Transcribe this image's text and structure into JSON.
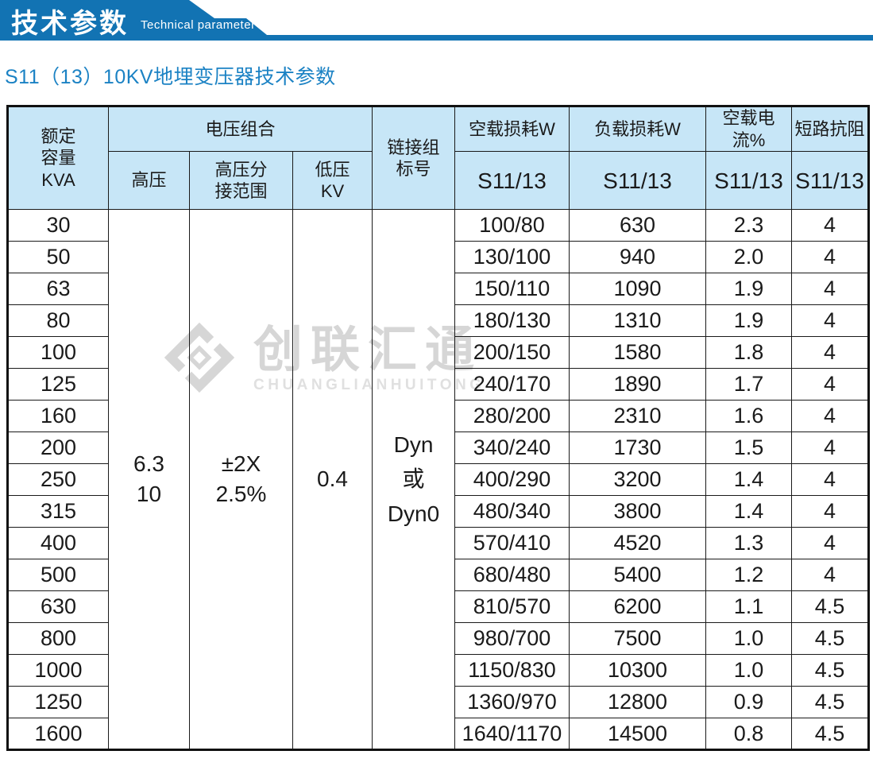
{
  "banner": {
    "title_zh": "技术参数",
    "title_en": "Technical parameter"
  },
  "section_title": "S11（13）10KV地埋变压器技术参数",
  "watermark": {
    "logo": "diamond-chain-logo",
    "name_zh": "创联汇通",
    "name_en": "CHUANGLIANHUITONG"
  },
  "colors": {
    "banner_blue": "#1273b3",
    "title_blue": "#1b82c4",
    "table_header_bg": "#c7e6f7",
    "border": "#1a1a1a",
    "watermark_gray": "#d6d6d6"
  },
  "table": {
    "headers": {
      "rated_capacity": "额定\n容量\nKVA",
      "voltage_group": "电压组合",
      "hv": "高压",
      "hv_tap_range": "高压分\n接范围",
      "lv": "低压\nKV",
      "vector_group": "链接组\n标号",
      "no_load_loss": "空载损耗W",
      "load_loss": "负载损耗W",
      "no_load_current": "空载电流%",
      "impedance": "短路抗阻",
      "model": "S11/13"
    },
    "merged": {
      "hv_value": "6.3\n10",
      "tap_value": "±2X\n2.5%",
      "lv_value": "0.4",
      "vector_value": "Dyn\n或\nDyn0"
    },
    "rows": [
      {
        "kva": "30",
        "no_load": "100/80",
        "load_loss": "630",
        "current": "2.3",
        "impedance": "4"
      },
      {
        "kva": "50",
        "no_load": "130/100",
        "load_loss": "940",
        "current": "2.0",
        "impedance": "4"
      },
      {
        "kva": "63",
        "no_load": "150/110",
        "load_loss": "1090",
        "current": "1.9",
        "impedance": "4"
      },
      {
        "kva": "80",
        "no_load": "180/130",
        "load_loss": "1310",
        "current": "1.9",
        "impedance": "4"
      },
      {
        "kva": "100",
        "no_load": "200/150",
        "load_loss": "1580",
        "current": "1.8",
        "impedance": "4"
      },
      {
        "kva": "125",
        "no_load": "240/170",
        "load_loss": "1890",
        "current": "1.7",
        "impedance": "4"
      },
      {
        "kva": "160",
        "no_load": "280/200",
        "load_loss": "2310",
        "current": "1.6",
        "impedance": "4"
      },
      {
        "kva": "200",
        "no_load": "340/240",
        "load_loss": "1730",
        "current": "1.5",
        "impedance": "4"
      },
      {
        "kva": "250",
        "no_load": "400/290",
        "load_loss": "3200",
        "current": "1.4",
        "impedance": "4"
      },
      {
        "kva": "315",
        "no_load": "480/340",
        "load_loss": "3800",
        "current": "1.4",
        "impedance": "4"
      },
      {
        "kva": "400",
        "no_load": "570/410",
        "load_loss": "4520",
        "current": "1.3",
        "impedance": "4"
      },
      {
        "kva": "500",
        "no_load": "680/480",
        "load_loss": "5400",
        "current": "1.2",
        "impedance": "4"
      },
      {
        "kva": "630",
        "no_load": "810/570",
        "load_loss": "6200",
        "current": "1.1",
        "impedance": "4.5"
      },
      {
        "kva": "800",
        "no_load": "980/700",
        "load_loss": "7500",
        "current": "1.0",
        "impedance": "4.5"
      },
      {
        "kva": "1000",
        "no_load": "1150/830",
        "load_loss": "10300",
        "current": "1.0",
        "impedance": "4.5"
      },
      {
        "kva": "1250",
        "no_load": "1360/970",
        "load_loss": "12800",
        "current": "0.9",
        "impedance": "4.5"
      },
      {
        "kva": "1600",
        "no_load": "1640/1170",
        "load_loss": "14500",
        "current": "0.8",
        "impedance": "4.5"
      }
    ]
  }
}
